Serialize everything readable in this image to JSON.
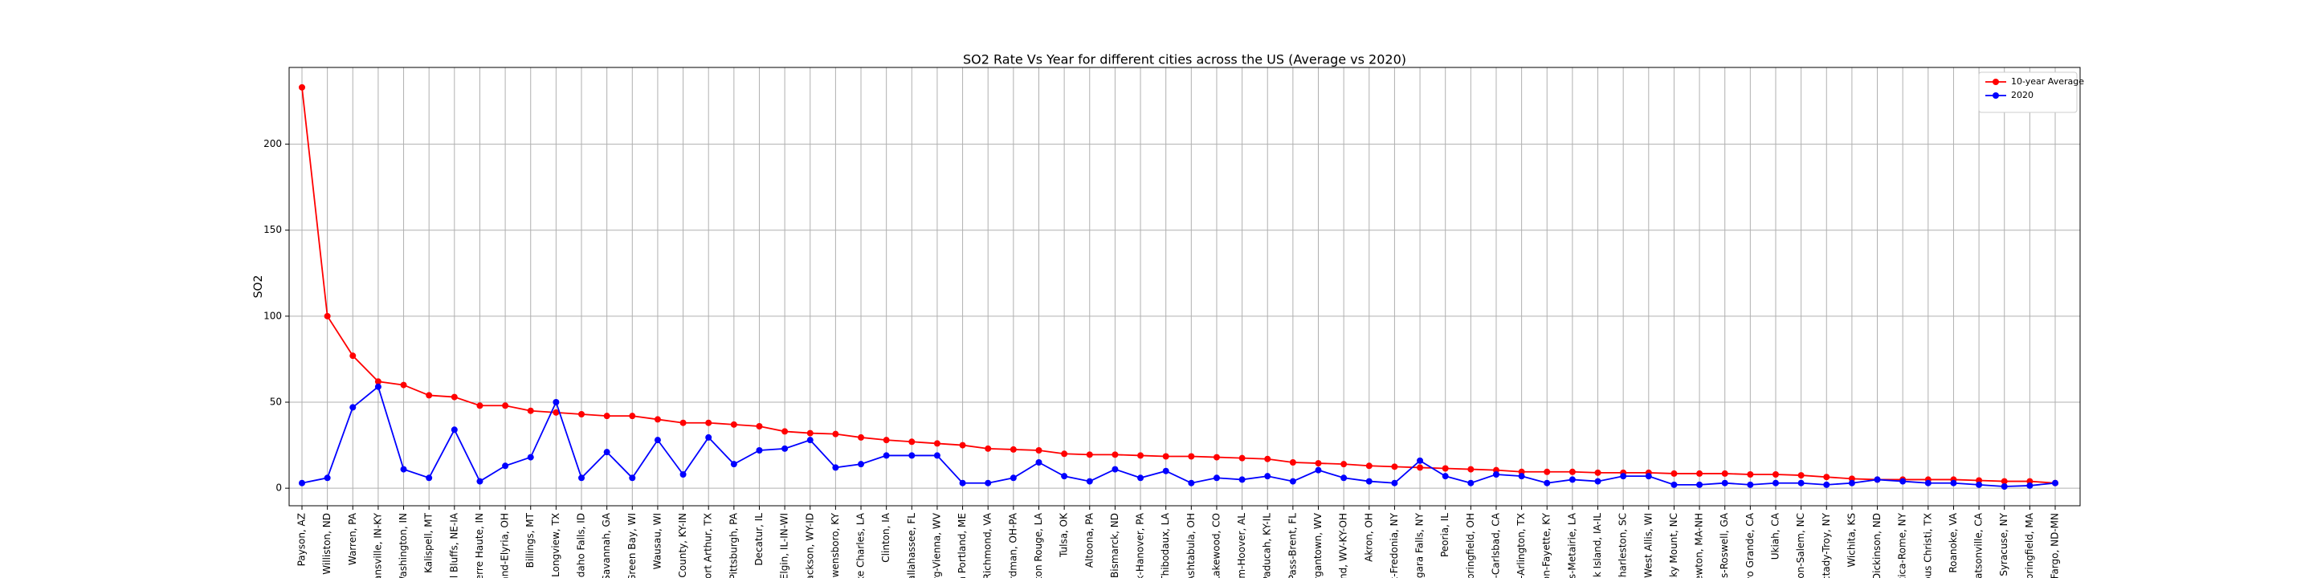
{
  "chart_data": {
    "type": "line",
    "title": "SO2 Rate Vs Year for different cities across the US (Average vs 2020)",
    "y_label": "SO2",
    "categories": [
      "Payson, AZ",
      "Williston, ND",
      "Warren, PA",
      "Evansville, IN-KY",
      "Washington, IN",
      "Kalispell, MT",
      "ncil Bluffs, NE-IA",
      "Terre Haute, IN",
      "eland-Elyria, OH",
      "Billings, MT",
      "Longview, TX",
      "Idaho Falls, ID",
      "Savannah, GA",
      "Green Bay, WI",
      "Wausau, WI",
      "on County, KY-IN",
      "Port Arthur, TX",
      "Pittsburgh, PA",
      "Decatur, IL",
      "le-Elgin, IL-IN-WI",
      "Jackson, WY-ID",
      "Owensboro, KY",
      "Lake Charles, LA",
      "Clinton, IA",
      "Tallahassee, FL",
      "burg-Vienna, WV",
      "uth Portland, ME",
      "Richmond, VA",
      "oardman, OH-PA",
      "Baton Rouge, LA",
      "Tulsa, OK",
      "Altoona, PA",
      "Bismarck, ND",
      "York-Hanover, PA",
      "a-Thibodaux, LA",
      "Ashtabula, OH",
      "a-Lakewood, CO",
      "ham-Hoover, AL",
      "Paducah, KY-IL",
      "y Pass-Brent, FL",
      "Morgantown, WV",
      "land, WV-KY-OH",
      "Akron, OH",
      "rk-Fredonia, NY",
      "iagara Falls, NY",
      "Peoria, IL",
      "Springfield, OH",
      "go-Carlsbad, CA",
      "rth-Arlington, TX",
      "ngton-Fayette, KY",
      "ans-Metairie, LA",
      "Rock Island, IA-IL",
      "h Charleston, SC",
      "ee-West Allis, WI",
      "Rocky Mount, NC",
      "Newton, MA-NH",
      "aps-Roswell, GA",
      "royo Grande, CA",
      "Ukiah, CA",
      "nston-Salem, NC",
      "ectady-Troy, NY",
      "Wichita, KS",
      "Dickinson, ND",
      "Utica-Rome, NY",
      "orpus Christi, TX",
      "Roanoke, VA",
      "-Watsonville, CA",
      "Syracuse, NY",
      "Springfield, MA",
      "Fargo, ND-MN"
    ],
    "series": [
      {
        "name": "10-year Average",
        "color": "#ff0000",
        "values": [
          233,
          100,
          77,
          62,
          60,
          54,
          53,
          48,
          48,
          45,
          44,
          43,
          42,
          42,
          40,
          38,
          38,
          37,
          36,
          33,
          32,
          31.5,
          29.5,
          28,
          27,
          26,
          25,
          23,
          22.5,
          22,
          20,
          19.5,
          19.5,
          19,
          18.5,
          18.5,
          18,
          17.5,
          17,
          15,
          14.5,
          14,
          13,
          12.5,
          12,
          11.5,
          11,
          10.5,
          9.5,
          9.5,
          9.5,
          9,
          9,
          9,
          8.5,
          8.5,
          8.5,
          8,
          8,
          7.5,
          6.5,
          5.5,
          5,
          5,
          5,
          5,
          4.5,
          4,
          4,
          3
        ]
      },
      {
        "name": "2020",
        "color": "#0000ff",
        "values": [
          3,
          6,
          47,
          59,
          11,
          6,
          34,
          4,
          13,
          18,
          50,
          6,
          21,
          6,
          28,
          8,
          29.5,
          14,
          22,
          23,
          28,
          12,
          14,
          19,
          19,
          19,
          3,
          3,
          6,
          15,
          7,
          4,
          11,
          6,
          10,
          3,
          6,
          5,
          7,
          4,
          10.5,
          6,
          4,
          3,
          16,
          7,
          3,
          8,
          7,
          3,
          5,
          4,
          7,
          7,
          2,
          2,
          3,
          2,
          3,
          3,
          2,
          3,
          5,
          4,
          3,
          3,
          2,
          1,
          1.5,
          3
        ]
      }
    ],
    "ylim": [
      -10.2,
      244.6
    ],
    "yticks": [
      0,
      50,
      100,
      150,
      200
    ],
    "grid": true,
    "legend": "upper right"
  }
}
